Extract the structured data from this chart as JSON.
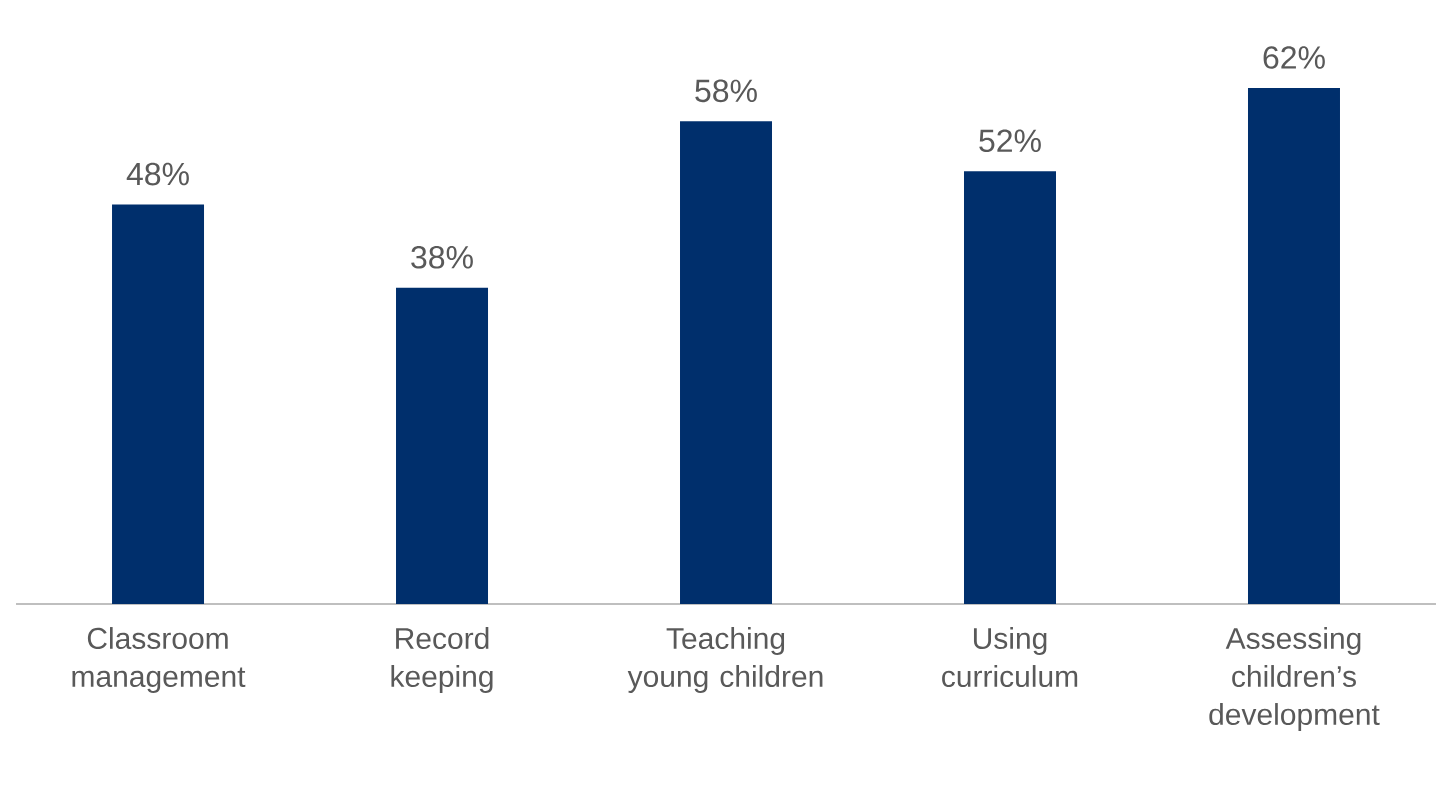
{
  "chart_data": {
    "type": "bar",
    "categories": [
      "Classroom management",
      "Record keeping",
      "Teaching young children",
      "Using curriculum",
      "Assessing children’s development"
    ],
    "values": [
      48,
      38,
      58,
      52,
      62
    ],
    "value_labels": [
      "48%",
      "38%",
      "58%",
      "52%",
      "62%"
    ],
    "color": "#002f6c"
  }
}
